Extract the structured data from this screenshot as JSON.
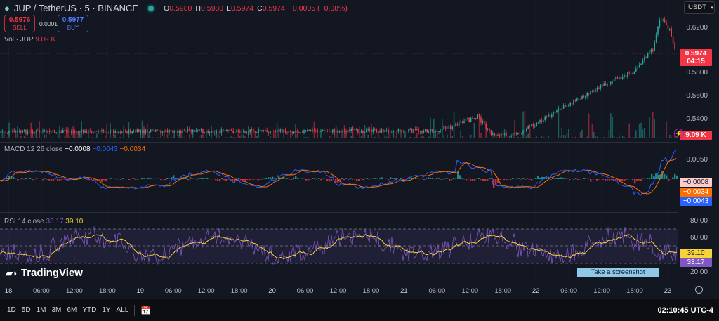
{
  "header": {
    "symbol": "JUP / TetherUS · 5 · BINANCE",
    "ohlc": [
      {
        "k": "O",
        "v": "0.5980"
      },
      {
        "k": "H",
        "v": "0.5980"
      },
      {
        "k": "L",
        "v": "0.5974"
      },
      {
        "k": "C",
        "v": "0.5974"
      }
    ],
    "change": "−0.0005 (−0.08%)",
    "status_color": "#26a69a"
  },
  "trade": {
    "sell_price": "0.5976",
    "sell_label": "SELL",
    "spread": "0.0001",
    "buy_price": "0.5977",
    "buy_label": "BUY"
  },
  "volume": {
    "label": "Vol · JUP",
    "value": "9.09 K",
    "tag": "9.09 K"
  },
  "currency": "USDT",
  "price_axis": {
    "ticks": [
      "0.6200",
      "0.5800",
      "0.5600",
      "0.5400"
    ],
    "last_price": "0.5974",
    "countdown": "04:15"
  },
  "macd": {
    "label": "MACD 12 26 close",
    "hist": "−0.0008",
    "macd": "−0.0043",
    "signal": "−0.0034",
    "tick": "0.0050",
    "tags": [
      "−0.0008",
      "−0.0034",
      "−0.0043"
    ]
  },
  "rsi": {
    "label": "RSI 14 close",
    "rsi": "33.17",
    "ma": "39.10",
    "ticks": [
      "80.00",
      "60.00",
      "20.00"
    ],
    "tags": [
      "39.10",
      "33.17"
    ]
  },
  "time_axis": [
    "18",
    "06:00",
    "12:00",
    "18:00",
    "19",
    "06:00",
    "12:00",
    "18:00",
    "20",
    "06:00",
    "12:00",
    "18:00",
    "21",
    "06:00",
    "12:00",
    "18:00",
    "22",
    "06:00",
    "12:00",
    "18:00",
    "23"
  ],
  "ranges": [
    "1D",
    "5D",
    "1M",
    "3M",
    "6M",
    "YTD",
    "1Y",
    "ALL"
  ],
  "clock": "02:10:45 UTC-4",
  "tooltip": "Take a screenshot",
  "logo": "TradingView",
  "colors": {
    "up": "#26a69a",
    "down": "#f23645",
    "macd": "#2962ff",
    "signal": "#ff6d00",
    "rsi": "#7e57c2",
    "rsi_ma": "#f7d23b"
  }
}
